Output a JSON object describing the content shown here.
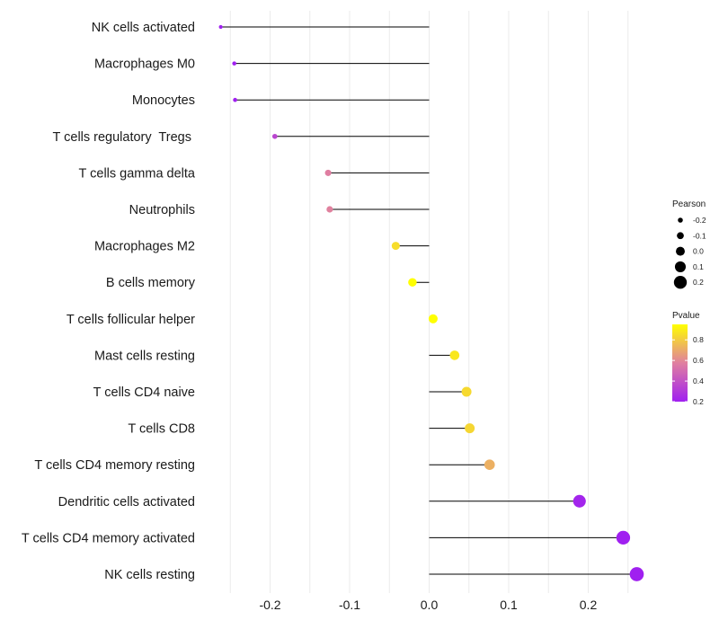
{
  "chart_data": {
    "type": "lollipop",
    "title": "",
    "xlabel": "",
    "ylabel": "",
    "xlim": [
      -0.265,
      0.265
    ],
    "xticks": [
      -0.2,
      -0.1,
      0.0,
      0.1,
      0.2
    ],
    "xtick_labels": [
      "-0.2",
      "-0.1",
      "0.0",
      "0.1",
      "0.2"
    ],
    "grid": true,
    "categories": [
      "NK cells activated",
      "Macrophages M0",
      "Monocytes",
      "T cells regulatory  Tregs ",
      "T cells gamma delta",
      "Neutrophils",
      "Macrophages M2",
      "B cells memory",
      "T cells follicular helper",
      "Mast cells resting",
      "T cells CD4 naive",
      "T cells CD8",
      "T cells CD4 memory resting",
      "Dendritic cells activated",
      "T cells CD4 memory activated",
      "NK cells resting"
    ],
    "pearson": [
      -0.262,
      -0.245,
      -0.244,
      -0.194,
      -0.127,
      -0.125,
      -0.042,
      -0.021,
      0.005,
      0.032,
      0.047,
      0.051,
      0.076,
      0.189,
      0.244,
      0.261
    ],
    "pvalue": [
      0.08,
      0.12,
      0.13,
      0.35,
      0.57,
      0.58,
      0.85,
      0.95,
      0.98,
      0.88,
      0.84,
      0.83,
      0.72,
      0.22,
      0.12,
      0.08
    ],
    "size_legend": {
      "title": "Pearson",
      "values": [
        -0.2,
        -0.1,
        0.0,
        0.1,
        0.2
      ],
      "labels": [
        "-0.2",
        "-0.1",
        "0.0",
        "0.1",
        "0.2"
      ]
    },
    "color_legend": {
      "title": "Pvalue",
      "range": [
        0.2,
        0.95
      ],
      "ticks": [
        0.2,
        0.4,
        0.6,
        0.8
      ],
      "labels": [
        "0.2",
        "0.4",
        "0.6",
        "0.8"
      ],
      "color_low": "#a020f0",
      "color_mid": "#e07fa0",
      "color_high": "#ffff00"
    },
    "stem_color": "#000000",
    "legend_position": "right"
  }
}
